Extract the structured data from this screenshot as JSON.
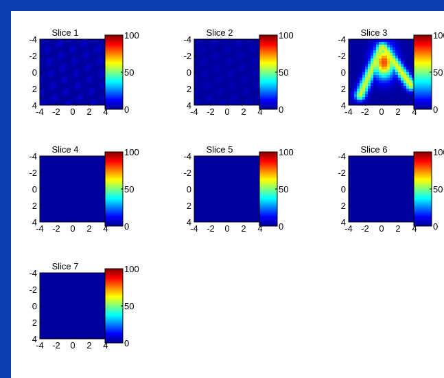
{
  "chart_data": {
    "type": "heatmap",
    "colormap": "jet",
    "x_ticks": [
      -4,
      -2,
      0,
      2,
      4
    ],
    "y_ticks": [
      -4,
      -2,
      0,
      2,
      4
    ],
    "xlim": [
      -4,
      4
    ],
    "ylim": [
      -4,
      4
    ],
    "y_axis_reversed": true,
    "colorbar": {
      "range": [
        0,
        100
      ],
      "ticks": [
        0,
        50,
        100
      ]
    },
    "background_value": 3,
    "panels": [
      {
        "title": "Slice 1",
        "max_value": 8
      },
      {
        "title": "Slice 2",
        "max_value": 6
      },
      {
        "title": "Slice 3",
        "max_value": 85,
        "features": [
          {
            "shape": "gaussian",
            "cx": 0.3,
            "cy": -1.2,
            "amplitude": 78,
            "sx": 0.9,
            "sy": 1.3
          },
          {
            "shape": "ridge",
            "from": [
              0,
              -3
            ],
            "to": [
              -2.6,
              2.8
            ],
            "amplitude": 55
          },
          {
            "shape": "ridge",
            "from": [
              0.2,
              -3
            ],
            "to": [
              3.6,
              1.6
            ],
            "amplitude": 58
          }
        ]
      },
      {
        "title": "Slice 4",
        "max_value": 3
      },
      {
        "title": "Slice 5",
        "max_value": 3
      },
      {
        "title": "Slice 6",
        "max_value": 3
      },
      {
        "title": "Slice 7",
        "max_value": 3
      }
    ]
  }
}
